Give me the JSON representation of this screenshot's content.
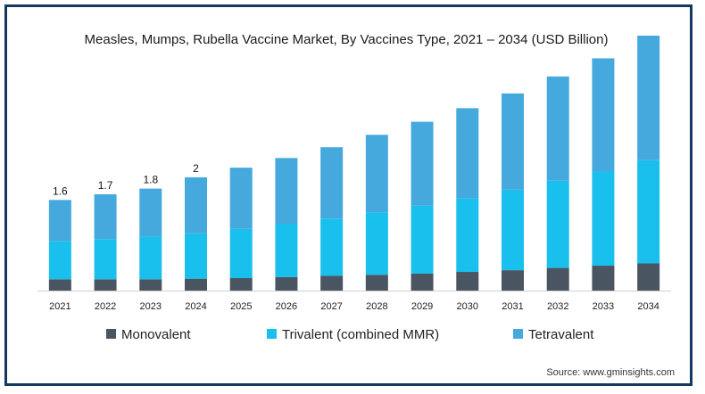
{
  "chart_data": {
    "type": "bar",
    "stacked": true,
    "title": "Measles, Mumps, Rubella Vaccine Market, By Vaccines Type, 2021 – 2034 (USD Billion)",
    "source": "Source: www.gminsights.com",
    "categories": [
      "2021",
      "2022",
      "2023",
      "2024",
      "2025",
      "2026",
      "2027",
      "2028",
      "2029",
      "2030",
      "2031",
      "2032",
      "2033",
      "2034"
    ],
    "series": [
      {
        "name": "Monovalent",
        "color": "#4a5562",
        "values": [
          0.2,
          0.2,
          0.2,
          0.21,
          0.22,
          0.24,
          0.26,
          0.28,
          0.3,
          0.33,
          0.36,
          0.4,
          0.44,
          0.48
        ]
      },
      {
        "name": "Trivalent (combined MMR)",
        "color": "#19c0ee",
        "values": [
          0.67,
          0.71,
          0.75,
          0.8,
          0.87,
          0.94,
          1.01,
          1.1,
          1.2,
          1.3,
          1.42,
          1.54,
          1.66,
          1.82
        ]
      },
      {
        "name": "Tetravalent",
        "color": "#46a9dd",
        "values": [
          0.73,
          0.79,
          0.85,
          0.99,
          1.08,
          1.16,
          1.26,
          1.37,
          1.48,
          1.59,
          1.7,
          1.84,
          2.0,
          2.2
        ]
      }
    ],
    "data_labels": [
      "1.6",
      "1.7",
      "1.8",
      "2"
    ],
    "legend_position": "bottom",
    "grid": false,
    "ylim": [
      0,
      4.5
    ]
  }
}
